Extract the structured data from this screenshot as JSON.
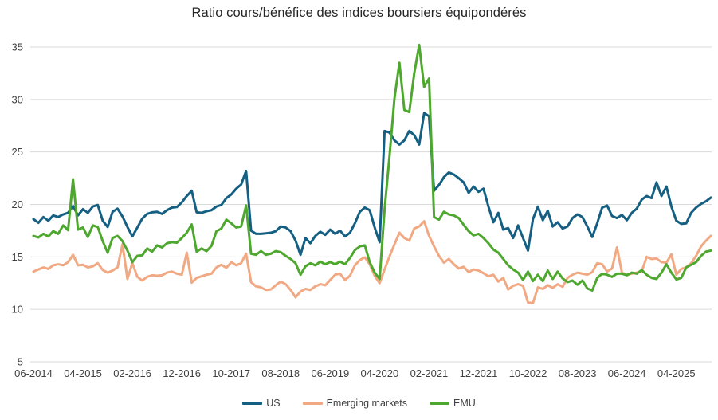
{
  "title": "Ratio cours/bénéfice des indices boursiers équipondérés",
  "colors": {
    "background": "#FFFFFF",
    "grid": "#D9D9D9",
    "axis_text": "#404040",
    "title_text": "#262626"
  },
  "chart_data": {
    "type": "line",
    "title": "Ratio cours/bénéfice des indices boursiers équipondérés",
    "x_start": "2014-06",
    "x_frequency": "monthly",
    "n_points": 138,
    "xtick_labels": [
      "06-2014",
      "04-2015",
      "02-2016",
      "12-2016",
      "10-2017",
      "08-2018",
      "06-2019",
      "04-2020",
      "02-2021",
      "12-2021",
      "10-2022",
      "08-2023",
      "06-2024",
      "04-2025"
    ],
    "xtick_month_indices": [
      0,
      10,
      20,
      30,
      40,
      50,
      60,
      70,
      80,
      90,
      100,
      110,
      120,
      130
    ],
    "yticks": [
      5,
      10,
      15,
      20,
      25,
      30,
      35
    ],
    "ylim": [
      5,
      35
    ],
    "grid": "horizontal",
    "legend_position": "bottom",
    "series": [
      {
        "name": "US",
        "color": "#156082",
        "values": [
          18.6,
          18.25,
          18.8,
          18.45,
          18.95,
          18.8,
          19.05,
          19.2,
          19.85,
          18.95,
          19.55,
          19.2,
          19.8,
          19.95,
          18.45,
          17.85,
          19.3,
          19.6,
          18.85,
          17.85,
          16.95,
          17.8,
          18.65,
          19.1,
          19.25,
          19.3,
          19.1,
          19.45,
          19.7,
          19.75,
          20.2,
          20.8,
          21.3,
          19.25,
          19.2,
          19.35,
          19.45,
          19.8,
          19.95,
          20.6,
          20.95,
          21.5,
          21.9,
          23.2,
          17.5,
          17.2,
          17.2,
          17.25,
          17.3,
          17.45,
          17.9,
          17.8,
          17.45,
          16.55,
          15.2,
          16.8,
          16.3,
          17.0,
          17.4,
          17.1,
          17.6,
          17.2,
          17.5,
          16.95,
          17.3,
          18.2,
          19.3,
          19.7,
          19.45,
          17.8,
          16.4,
          27.0,
          26.85,
          26.1,
          25.7,
          26.1,
          27.0,
          26.6,
          25.7,
          28.7,
          28.4,
          21.3,
          21.85,
          22.6,
          23.05,
          22.85,
          22.5,
          22.1,
          21.1,
          21.7,
          21.2,
          21.5,
          19.8,
          18.3,
          19.2,
          17.6,
          17.75,
          16.8,
          18.0,
          16.8,
          15.6,
          18.6,
          19.8,
          18.5,
          19.4,
          17.9,
          18.3,
          17.7,
          17.9,
          18.7,
          19.05,
          18.8,
          17.9,
          16.9,
          18.2,
          19.7,
          19.9,
          18.9,
          18.7,
          19.0,
          18.5,
          19.2,
          19.6,
          20.45,
          20.8,
          20.6,
          22.1,
          20.8,
          21.7,
          19.8,
          18.45,
          18.15,
          18.2,
          19.2,
          19.7,
          20.05,
          20.3,
          20.65
        ]
      },
      {
        "name": "Emerging markets",
        "color": "#F1A983",
        "values": [
          13.6,
          13.8,
          14.0,
          13.85,
          14.2,
          14.3,
          14.2,
          14.5,
          15.2,
          14.2,
          14.25,
          14.0,
          14.1,
          14.4,
          13.75,
          13.5,
          13.7,
          14.0,
          16.2,
          12.9,
          14.4,
          13.1,
          12.75,
          13.1,
          13.25,
          13.2,
          13.25,
          13.5,
          13.6,
          13.4,
          13.3,
          15.4,
          12.55,
          13.0,
          13.15,
          13.3,
          13.4,
          14.0,
          14.25,
          13.95,
          14.5,
          14.2,
          14.4,
          15.3,
          12.6,
          12.2,
          12.1,
          11.85,
          11.9,
          12.3,
          12.65,
          12.4,
          11.85,
          11.15,
          11.7,
          11.95,
          11.85,
          12.2,
          12.4,
          12.3,
          12.8,
          13.3,
          13.4,
          12.8,
          13.2,
          14.2,
          14.7,
          14.95,
          14.3,
          13.2,
          12.5,
          13.8,
          15.05,
          16.2,
          17.3,
          16.8,
          16.55,
          17.7,
          17.9,
          18.4,
          17.0,
          16.0,
          15.1,
          14.45,
          14.8,
          14.3,
          13.9,
          14.05,
          13.55,
          13.8,
          13.7,
          13.45,
          13.15,
          13.3,
          12.65,
          13.0,
          11.9,
          12.25,
          12.4,
          12.25,
          10.65,
          10.6,
          12.1,
          11.95,
          12.3,
          12.05,
          12.4,
          12.15,
          13.0,
          13.3,
          13.5,
          13.4,
          13.3,
          13.55,
          14.4,
          14.3,
          13.6,
          13.9,
          15.9,
          13.5,
          13.3,
          13.4,
          13.5,
          13.6,
          15.0,
          14.8,
          14.85,
          14.5,
          14.45,
          15.25,
          13.3,
          13.85,
          14.0,
          14.4,
          15.1,
          16.0,
          16.55,
          17.0
        ]
      },
      {
        "name": "EMU",
        "color": "#4EA72E",
        "values": [
          17.0,
          16.85,
          17.2,
          16.95,
          17.45,
          17.2,
          18.0,
          17.55,
          22.4,
          17.6,
          17.8,
          16.9,
          18.0,
          17.85,
          16.5,
          15.4,
          16.8,
          17.0,
          16.5,
          15.6,
          14.5,
          15.1,
          15.15,
          15.8,
          15.5,
          16.1,
          15.9,
          16.3,
          16.4,
          16.35,
          16.8,
          17.3,
          18.1,
          15.5,
          15.8,
          15.55,
          16.05,
          17.45,
          17.7,
          18.55,
          18.2,
          17.8,
          17.9,
          19.9,
          15.3,
          15.2,
          15.55,
          15.2,
          15.3,
          15.55,
          15.45,
          15.1,
          14.8,
          14.4,
          13.3,
          14.1,
          14.4,
          14.2,
          14.55,
          14.3,
          14.5,
          14.3,
          14.55,
          14.3,
          14.9,
          15.65,
          16.0,
          16.1,
          14.5,
          13.5,
          12.9,
          19.5,
          24.6,
          30.1,
          33.5,
          29.0,
          28.8,
          32.5,
          35.2,
          31.2,
          32.0,
          18.8,
          18.55,
          19.3,
          19.05,
          18.95,
          18.7,
          18.05,
          17.45,
          17.05,
          17.2,
          16.8,
          16.3,
          15.7,
          15.4,
          14.8,
          14.2,
          13.8,
          13.5,
          12.8,
          13.6,
          12.7,
          13.3,
          12.7,
          13.7,
          12.9,
          13.6,
          12.95,
          12.6,
          12.75,
          12.35,
          12.75,
          12.0,
          11.8,
          13.0,
          13.4,
          13.3,
          13.1,
          13.4,
          13.4,
          13.25,
          13.5,
          13.4,
          13.75,
          13.3,
          13.0,
          12.9,
          13.5,
          14.3,
          13.5,
          12.85,
          13.0,
          14.0,
          14.25,
          14.5,
          15.1,
          15.5,
          15.6
        ]
      }
    ]
  }
}
